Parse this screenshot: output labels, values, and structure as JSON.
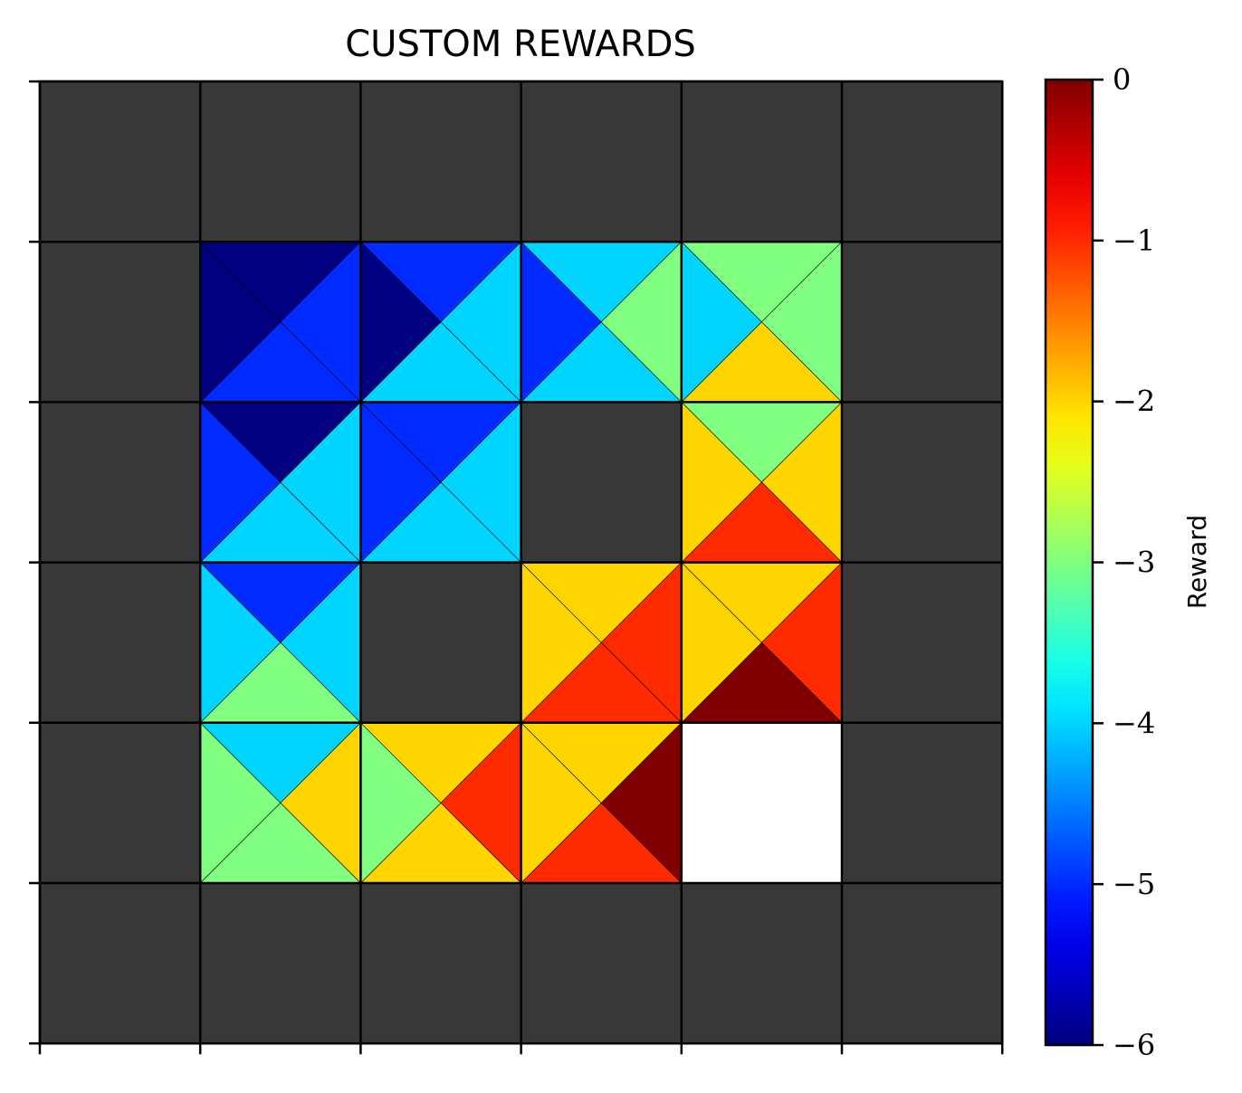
{
  "chart_data": {
    "type": "heatmap",
    "title": "CUSTOM REWARDS",
    "grid_rows": 6,
    "grid_cols": 6,
    "cell_value_order": [
      "top",
      "right",
      "bottom",
      "left"
    ],
    "wall_color": "#383838",
    "goal_color": "#ffffff",
    "walls": [
      [
        0,
        0
      ],
      [
        0,
        1
      ],
      [
        0,
        2
      ],
      [
        0,
        3
      ],
      [
        0,
        4
      ],
      [
        0,
        5
      ],
      [
        1,
        0
      ],
      [
        1,
        5
      ],
      [
        2,
        0
      ],
      [
        2,
        3
      ],
      [
        2,
        5
      ],
      [
        3,
        0
      ],
      [
        3,
        2
      ],
      [
        3,
        5
      ],
      [
        4,
        0
      ],
      [
        4,
        5
      ],
      [
        5,
        0
      ],
      [
        5,
        1
      ],
      [
        5,
        2
      ],
      [
        5,
        3
      ],
      [
        5,
        4
      ],
      [
        5,
        5
      ]
    ],
    "goals": [
      [
        4,
        4
      ]
    ],
    "cells": [
      {
        "row": 1,
        "col": 1,
        "values": [
          -6,
          -5,
          -5,
          -6
        ]
      },
      {
        "row": 1,
        "col": 2,
        "values": [
          -5,
          -4,
          -4,
          -6
        ]
      },
      {
        "row": 1,
        "col": 3,
        "values": [
          -4,
          -3,
          -4,
          -5
        ]
      },
      {
        "row": 1,
        "col": 4,
        "values": [
          -3,
          -3,
          -2,
          -4
        ]
      },
      {
        "row": 2,
        "col": 1,
        "values": [
          -6,
          -4,
          -4,
          -5
        ]
      },
      {
        "row": 2,
        "col": 2,
        "values": [
          -5,
          -4,
          -4,
          -5
        ]
      },
      {
        "row": 2,
        "col": 4,
        "values": [
          -3,
          -2,
          -1,
          -2
        ]
      },
      {
        "row": 3,
        "col": 1,
        "values": [
          -5,
          -4,
          -3,
          -4
        ]
      },
      {
        "row": 3,
        "col": 3,
        "values": [
          -2,
          -1,
          -1,
          -2
        ]
      },
      {
        "row": 3,
        "col": 4,
        "values": [
          -2,
          -1,
          0,
          -2
        ]
      },
      {
        "row": 4,
        "col": 1,
        "values": [
          -4,
          -2,
          -3,
          -3
        ]
      },
      {
        "row": 4,
        "col": 2,
        "values": [
          -2,
          -1,
          -2,
          -3
        ]
      },
      {
        "row": 4,
        "col": 3,
        "values": [
          -2,
          0,
          -1,
          -2
        ]
      }
    ],
    "colorbar": {
      "label": "Reward",
      "range": [
        -6,
        0
      ],
      "colormap": "jet",
      "ticks": [
        0,
        -1,
        -2,
        -3,
        -4,
        -5,
        -6
      ],
      "tick_labels": [
        "0",
        "−1",
        "−2",
        "−3",
        "−4",
        "−5",
        "−6"
      ]
    }
  }
}
